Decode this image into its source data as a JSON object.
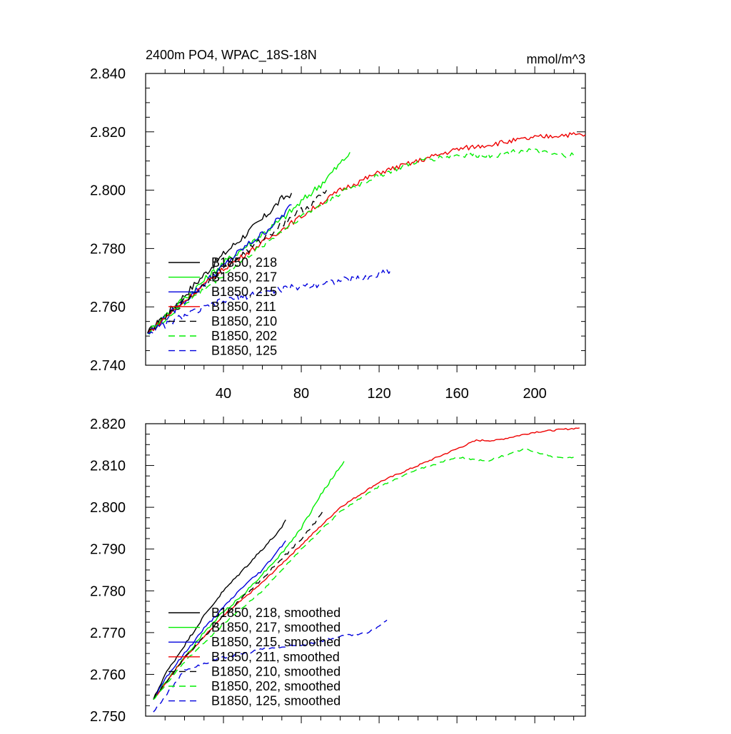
{
  "figure": {
    "title_left": "2400m PO4, WPAC_18S-18N",
    "title_right": "mmol/m^3"
  },
  "colors": {
    "black": "#000000",
    "green": "#00ee00",
    "blue": "#0000dd",
    "red": "#ee0000"
  },
  "chart_data": [
    {
      "type": "line",
      "panel": "top",
      "xlim": [
        0,
        226
      ],
      "ylim": [
        2.74,
        2.84
      ],
      "x_ticks": [
        40,
        80,
        120,
        160,
        200
      ],
      "x_tick_labels": [
        "40",
        "80",
        "120",
        "160",
        "200"
      ],
      "y_ticks": [
        2.74,
        2.76,
        2.78,
        2.8,
        2.82,
        2.84
      ],
      "y_tick_labels": [
        "2.740",
        "2.760",
        "2.780",
        "2.800",
        "2.820",
        "2.840"
      ],
      "legend": "bottom-left",
      "series": [
        {
          "name": "B1850, 218",
          "color": "#000000",
          "dash": false,
          "noise": 0.0013,
          "x": [
            1,
            10,
            20,
            30,
            40,
            50,
            60,
            70,
            75
          ],
          "y": [
            2.751,
            2.757,
            2.764,
            2.771,
            2.778,
            2.784,
            2.79,
            2.797,
            2.799
          ]
        },
        {
          "name": "B1850, 217",
          "color": "#00ee00",
          "dash": false,
          "noise": 0.0013,
          "x": [
            1,
            10,
            20,
            30,
            40,
            50,
            60,
            70,
            80,
            90,
            100,
            105
          ],
          "y": [
            2.751,
            2.757,
            2.763,
            2.769,
            2.775,
            2.78,
            2.785,
            2.79,
            2.796,
            2.802,
            2.809,
            2.813
          ]
        },
        {
          "name": "B1850, 215",
          "color": "#0000dd",
          "dash": false,
          "noise": 0.0012,
          "x": [
            1,
            10,
            20,
            30,
            40,
            50,
            60,
            70,
            75
          ],
          "y": [
            2.751,
            2.756,
            2.762,
            2.768,
            2.774,
            2.78,
            2.785,
            2.791,
            2.795
          ]
        },
        {
          "name": "B1850, 211",
          "color": "#ee0000",
          "dash": false,
          "noise": 0.0009,
          "x": [
            1,
            20,
            40,
            60,
            80,
            100,
            120,
            140,
            160,
            180,
            200,
            215,
            226
          ],
          "y": [
            2.751,
            2.762,
            2.773,
            2.782,
            2.791,
            2.8,
            2.806,
            2.81,
            2.814,
            2.816,
            2.818,
            2.819,
            2.819
          ]
        },
        {
          "name": "B1850, 210",
          "color": "#000000",
          "dash": true,
          "noise": 0.0012,
          "x": [
            1,
            20,
            40,
            60,
            75,
            85,
            93
          ],
          "y": [
            2.751,
            2.762,
            2.773,
            2.783,
            2.791,
            2.795,
            2.8
          ]
        },
        {
          "name": "B1850, 202",
          "color": "#00ee00",
          "dash": true,
          "noise": 0.0009,
          "x": [
            1,
            20,
            40,
            60,
            80,
            100,
            120,
            140,
            160,
            180,
            195,
            210,
            220
          ],
          "y": [
            2.751,
            2.761,
            2.771,
            2.781,
            2.791,
            2.799,
            2.805,
            2.81,
            2.812,
            2.812,
            2.814,
            2.812,
            2.812
          ]
        },
        {
          "name": "B1850, 125",
          "color": "#0000dd",
          "dash": true,
          "noise": 0.0012,
          "x": [
            1,
            20,
            40,
            60,
            80,
            100,
            115,
            127
          ],
          "y": [
            2.751,
            2.757,
            2.762,
            2.765,
            2.767,
            2.769,
            2.77,
            2.773
          ]
        }
      ]
    },
    {
      "type": "line",
      "panel": "bottom",
      "xlim": [
        0,
        226
      ],
      "ylim": [
        2.75,
        2.82
      ],
      "x_ticks": [
        40,
        80,
        120,
        160,
        200
      ],
      "x_tick_labels": [],
      "y_ticks": [
        2.75,
        2.76,
        2.77,
        2.78,
        2.79,
        2.8,
        2.81,
        2.82
      ],
      "y_tick_labels": [
        "2.750",
        "2.760",
        "2.770",
        "2.780",
        "2.790",
        "2.800",
        "2.810",
        "2.820"
      ],
      "legend": "bottom-left",
      "series": [
        {
          "name": "B1850, 218, smoothed",
          "color": "#000000",
          "dash": false,
          "noise": 0.0003,
          "x": [
            4,
            10,
            20,
            30,
            40,
            50,
            60,
            70,
            72
          ],
          "y": [
            2.754,
            2.76,
            2.767,
            2.774,
            2.78,
            2.785,
            2.79,
            2.795,
            2.797
          ]
        },
        {
          "name": "B1850, 217, smoothed",
          "color": "#00ee00",
          "dash": false,
          "noise": 0.0003,
          "x": [
            4,
            10,
            20,
            30,
            40,
            50,
            60,
            70,
            80,
            90,
            102
          ],
          "y": [
            2.754,
            2.758,
            2.764,
            2.77,
            2.775,
            2.779,
            2.784,
            2.789,
            2.795,
            2.803,
            2.811
          ]
        },
        {
          "name": "B1850, 215, smoothed",
          "color": "#0000dd",
          "dash": false,
          "noise": 0.0003,
          "x": [
            4,
            10,
            20,
            30,
            40,
            50,
            60,
            72
          ],
          "y": [
            2.754,
            2.759,
            2.765,
            2.771,
            2.776,
            2.781,
            2.785,
            2.792
          ]
        },
        {
          "name": "B1850, 211, smoothed",
          "color": "#ee0000",
          "dash": false,
          "noise": 0.0002,
          "x": [
            4,
            20,
            40,
            60,
            80,
            100,
            120,
            140,
            160,
            170,
            180,
            200,
            223
          ],
          "y": [
            2.754,
            2.764,
            2.774,
            2.782,
            2.791,
            2.8,
            2.806,
            2.81,
            2.814,
            2.816,
            2.816,
            2.818,
            2.819
          ]
        },
        {
          "name": "B1850, 210, smoothed",
          "color": "#000000",
          "dash": true,
          "noise": 0.0003,
          "x": [
            4,
            20,
            40,
            60,
            75,
            85,
            91
          ],
          "y": [
            2.754,
            2.764,
            2.774,
            2.783,
            2.79,
            2.795,
            2.799
          ]
        },
        {
          "name": "B1850, 202, smoothed",
          "color": "#00ee00",
          "dash": true,
          "noise": 0.0002,
          "x": [
            4,
            20,
            40,
            60,
            80,
            100,
            120,
            140,
            160,
            175,
            195,
            210,
            220
          ],
          "y": [
            2.754,
            2.763,
            2.772,
            2.78,
            2.79,
            2.799,
            2.805,
            2.809,
            2.812,
            2.811,
            2.814,
            2.812,
            2.812
          ]
        },
        {
          "name": "B1850, 125, smoothed",
          "color": "#0000dd",
          "dash": true,
          "noise": 0.0003,
          "x": [
            4,
            20,
            40,
            60,
            80,
            100,
            115,
            124
          ],
          "y": [
            2.751,
            2.761,
            2.764,
            2.766,
            2.767,
            2.769,
            2.77,
            2.773
          ]
        }
      ]
    }
  ]
}
